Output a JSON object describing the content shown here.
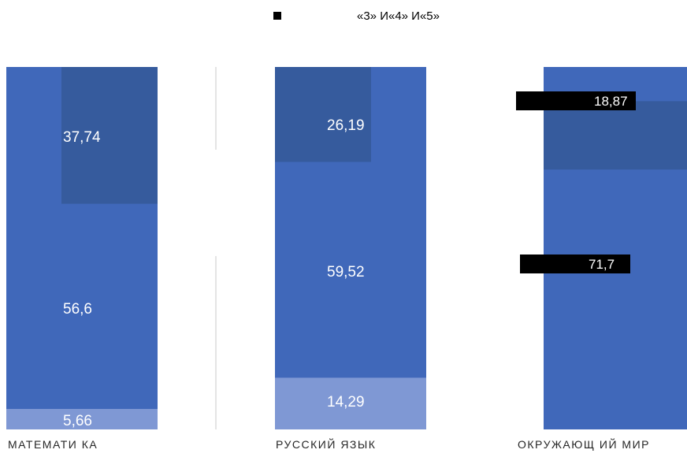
{
  "chart_data": {
    "type": "bar",
    "stacked": true,
    "categories": [
      "МАТЕМАТИ КА",
      "РУССКИЙ ЯЗЫК",
      "ОКРУЖАЮЩ ИЙ МИР"
    ],
    "legend": {
      "text": "«3» И«4» И«5»",
      "placement": "top"
    },
    "series": [
      {
        "values": [
          5.66,
          14.29,
          null
        ],
        "color": "#7f98d4"
      },
      {
        "values": [
          56.6,
          59.52,
          71.7
        ],
        "color": "#4068ba"
      },
      {
        "values": [
          37.74,
          26.19,
          18.87
        ],
        "color": "#365b9d"
      }
    ],
    "data_labels": [
      [
        "5,66",
        "14,29",
        ""
      ],
      [
        "56,6",
        "59,52",
        "71,7"
      ],
      [
        "37,74",
        "26,19",
        "18,87"
      ]
    ],
    "grid": false,
    "colors": {
      "bar_main": "#4068ba",
      "bar_light": "#7f98d4",
      "bar_dark": "#365b9d",
      "label_box": "#000000",
      "label_text": "#ffffff",
      "axis_text": "#262626"
    }
  }
}
